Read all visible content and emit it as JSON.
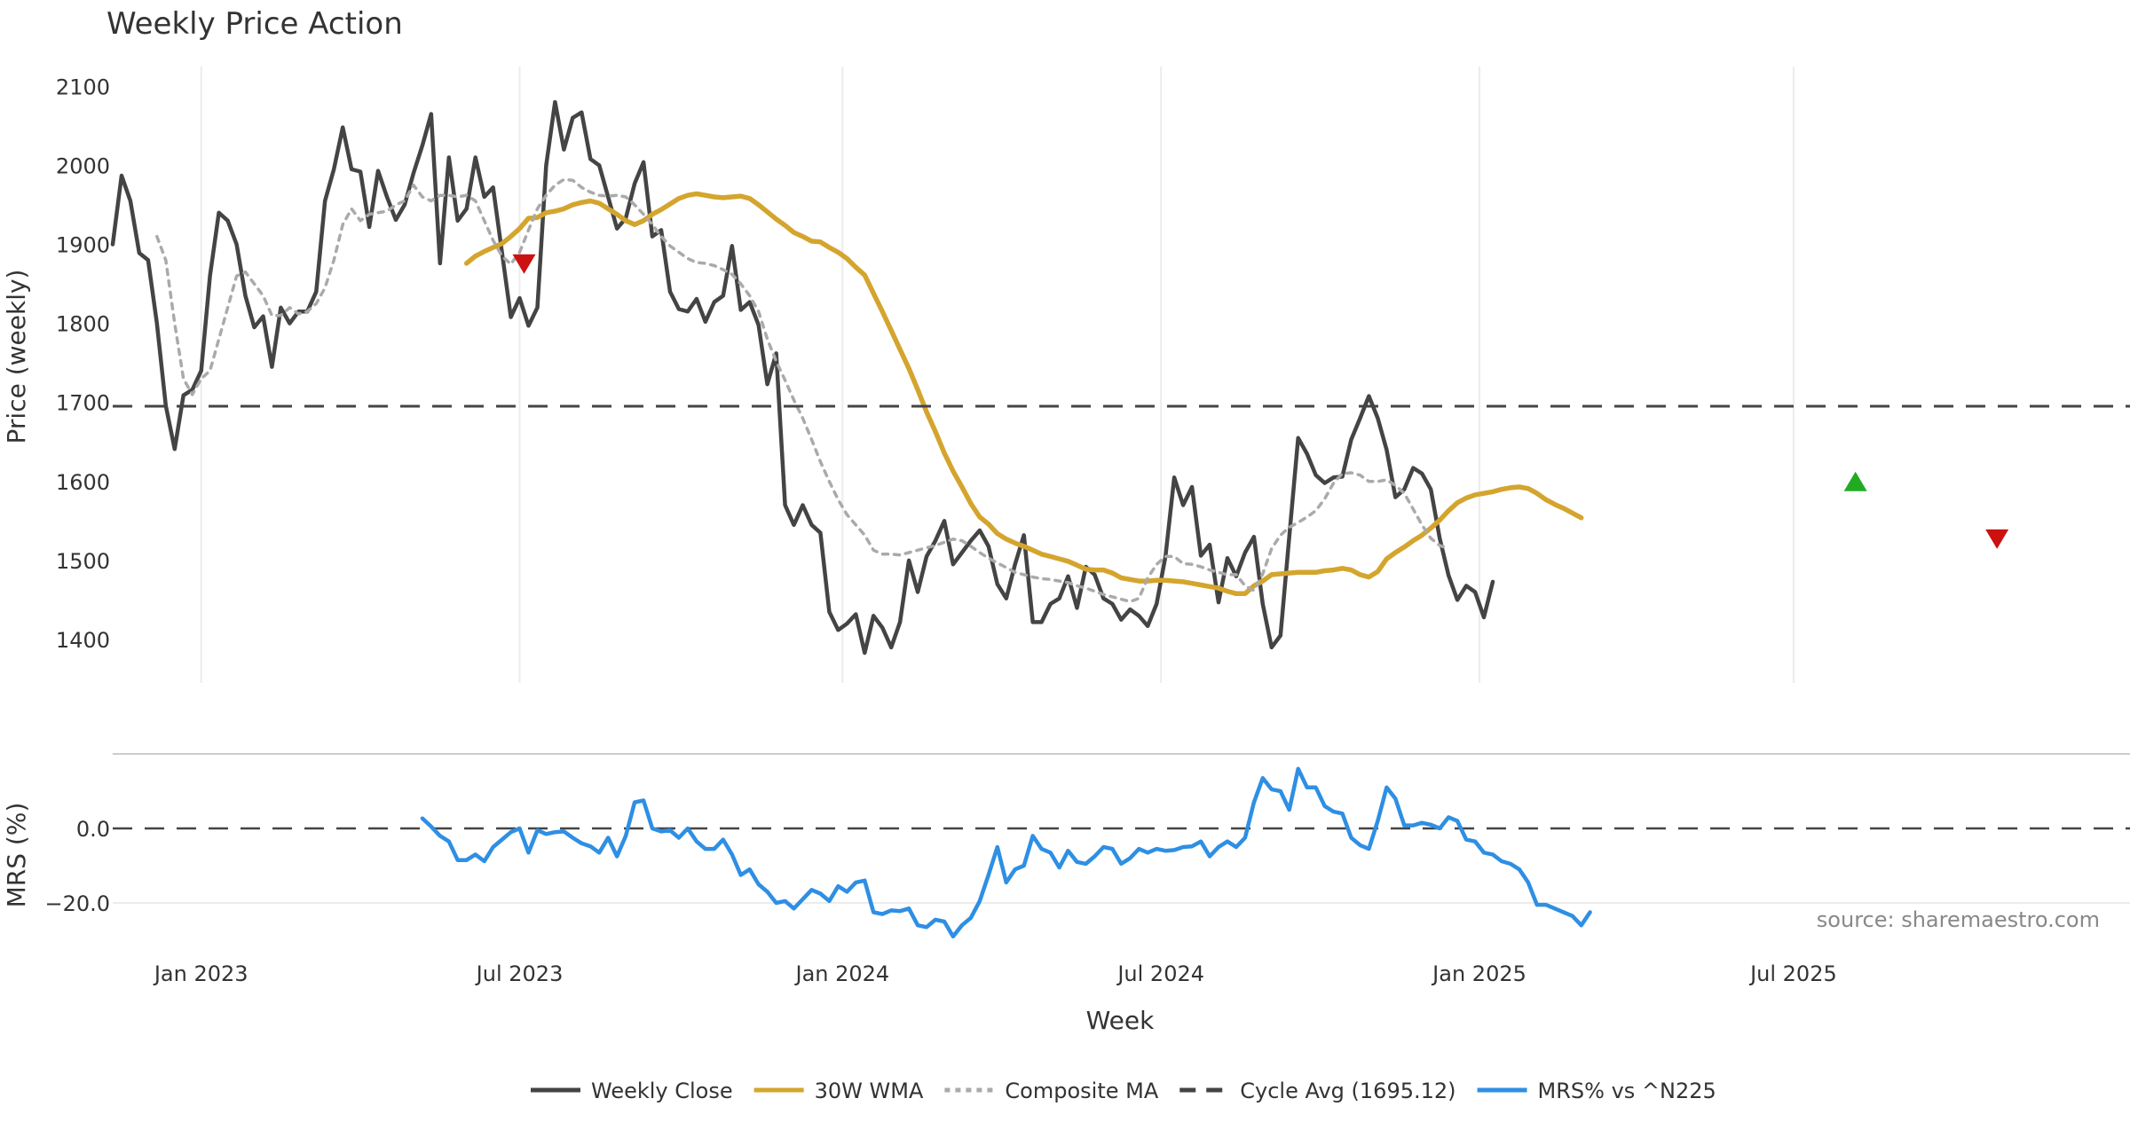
{
  "chart_data": {
    "type": "line",
    "title": "Weekly Price Action",
    "xlabel": "Week",
    "source_note": "source: sharemaestro.com",
    "x_ticks": [
      "Jan 2023",
      "Jul 2023",
      "Jan 2024",
      "Jul 2024",
      "Jan 2025",
      "Jul 2025"
    ],
    "x_tick_weeks": [
      10,
      46,
      82.5,
      118.5,
      154.5,
      190
    ],
    "weeks_total": 218,
    "price_panel": {
      "ylabel": "Price (weekly)",
      "ylim": [
        1345,
        2125
      ],
      "yticks": [
        1400,
        1500,
        1600,
        1700,
        1800,
        1900,
        2000,
        2100
      ],
      "cycle_avg": 1695.12
    },
    "mrs_panel": {
      "ylabel": "MRS (%)",
      "ylim": [
        -30,
        20
      ],
      "yticks": [
        0.0,
        -20.0
      ],
      "ytick_labels": [
        "0.0",
        "−20.0"
      ]
    },
    "series": [
      {
        "name": "Weekly Close",
        "panel": "price",
        "color": "#444444",
        "style": "solid",
        "start_week": 0,
        "values": [
          1900,
          1987,
          1955,
          1889,
          1880,
          1800,
          1696,
          1641,
          1709,
          1716,
          1740,
          1860,
          1940,
          1930,
          1900,
          1835,
          1795,
          1809,
          1745,
          1820,
          1800,
          1815,
          1815,
          1840,
          1955,
          1995,
          2048,
          1995,
          1992,
          1922,
          1993,
          1960,
          1931,
          1950,
          1990,
          2025,
          2065,
          1876,
          2010,
          1930,
          1945,
          2010,
          1960,
          1972,
          1890,
          1808,
          1832,
          1797,
          1820,
          2000,
          2080,
          2020,
          2060,
          2067,
          2008,
          2000,
          1960,
          1920,
          1933,
          1977,
          2004,
          1910,
          1918,
          1840,
          1818,
          1815,
          1831,
          1802,
          1827,
          1835,
          1898,
          1817,
          1827,
          1798,
          1723,
          1762,
          1570,
          1545,
          1570,
          1545,
          1535,
          1435,
          1412,
          1420,
          1432,
          1383,
          1430,
          1415,
          1390,
          1422,
          1500,
          1460,
          1505,
          1525,
          1550,
          1495,
          1510,
          1525,
          1538,
          1518,
          1470,
          1452,
          1495,
          1532,
          1422,
          1422,
          1445,
          1452,
          1480,
          1440,
          1492,
          1482,
          1452,
          1445,
          1425,
          1438,
          1430,
          1417,
          1445,
          1505,
          1605,
          1570,
          1593,
          1506,
          1520,
          1447,
          1503,
          1480,
          1510,
          1530,
          1445,
          1390,
          1405,
          1530,
          1655,
          1635,
          1608,
          1598,
          1605,
          1606,
          1653,
          1680,
          1708,
          1680,
          1640,
          1580,
          1590,
          1617,
          1610,
          1590,
          1528,
          1481,
          1450,
          1468,
          1460,
          1428,
          1473
        ]
      },
      {
        "name": "30W WMA",
        "panel": "price",
        "color": "#D4A52E",
        "style": "solid",
        "start_week": 40,
        "values": [
          1876,
          1885,
          1891,
          1896,
          1901,
          1910,
          1920,
          1933,
          1934,
          1940,
          1942,
          1945,
          1950,
          1953,
          1955,
          1952,
          1945,
          1938,
          1930,
          1925,
          1930,
          1938,
          1944,
          1951,
          1958,
          1962,
          1964,
          1962,
          1960,
          1959,
          1960,
          1961,
          1958,
          1950,
          1941,
          1932,
          1924,
          1915,
          1910,
          1904,
          1903,
          1896,
          1890,
          1882,
          1871,
          1861,
          1838,
          1815,
          1791,
          1767,
          1743,
          1716,
          1688,
          1663,
          1636,
          1613,
          1593,
          1572,
          1555,
          1546,
          1534,
          1527,
          1522,
          1518,
          1513,
          1508,
          1505,
          1502,
          1499,
          1494,
          1489,
          1488,
          1488,
          1484,
          1478,
          1476,
          1474,
          1474,
          1475,
          1475,
          1474,
          1473,
          1471,
          1469,
          1467,
          1465,
          1461,
          1458,
          1458,
          1468,
          1474,
          1482,
          1483,
          1484,
          1485,
          1485,
          1485,
          1487,
          1488,
          1490,
          1488,
          1482,
          1479,
          1486,
          1502,
          1510,
          1517,
          1525,
          1532,
          1541,
          1551,
          1563,
          1573,
          1579,
          1583,
          1585,
          1587,
          1590,
          1592,
          1593,
          1591,
          1585,
          1577,
          1571,
          1566,
          1560,
          1554
        ]
      },
      {
        "name": "Composite MA",
        "panel": "price",
        "color": "#AAAAAA",
        "style": "dotted",
        "start_week": 5,
        "values": [
          1910,
          1880,
          1800,
          1730,
          1710,
          1730,
          1740,
          1780,
          1820,
          1860,
          1865,
          1850,
          1835,
          1810,
          1810,
          1820,
          1812,
          1815,
          1825,
          1845,
          1880,
          1925,
          1945,
          1930,
          1938,
          1940,
          1942,
          1950,
          1955,
          1975,
          1960,
          1955,
          1962,
          1962,
          1960,
          1962,
          1955,
          1930,
          1905,
          1885,
          1875,
          1890,
          1918,
          1945,
          1962,
          1975,
          1982,
          1981,
          1972,
          1966,
          1962,
          1961,
          1962,
          1960,
          1950,
          1938,
          1925,
          1910,
          1898,
          1890,
          1882,
          1877,
          1876,
          1873,
          1868,
          1862,
          1850,
          1835,
          1815,
          1780,
          1752,
          1728,
          1703,
          1680,
          1653,
          1625,
          1600,
          1577,
          1558,
          1545,
          1532,
          1513,
          1508,
          1508,
          1507,
          1510,
          1513,
          1516,
          1519,
          1523,
          1527,
          1525,
          1518,
          1510,
          1503,
          1497,
          1491,
          1485,
          1482,
          1479,
          1477,
          1476,
          1474,
          1472,
          1468,
          1465,
          1461,
          1457,
          1454,
          1451,
          1448,
          1452,
          1478,
          1495,
          1505,
          1505,
          1496,
          1495,
          1492,
          1488,
          1485,
          1482,
          1482,
          1468,
          1462,
          1483,
          1515,
          1532,
          1542,
          1548,
          1555,
          1563,
          1578,
          1598,
          1610,
          1611,
          1608,
          1600,
          1600,
          1602,
          1595,
          1585,
          1565,
          1545,
          1528,
          1519,
          1515
        ]
      },
      {
        "name": "Cycle Avg (1695.12)",
        "panel": "price",
        "color": "#444444",
        "style": "dashed",
        "value": 1695.12
      },
      {
        "name": "MRS% vs ^N225",
        "panel": "mrs",
        "color": "#2E8FE3",
        "style": "solid",
        "start_week": 35,
        "values": [
          2.7,
          0.5,
          -2.0,
          -3.5,
          -8.5,
          -8.5,
          -7.0,
          -8.8,
          -5.0,
          -3.0,
          -1.0,
          0.0,
          -6.5,
          -0.5,
          -1.5,
          -1.0,
          -0.8,
          -2.5,
          -4.0,
          -4.8,
          -6.5,
          -2.5,
          -7.5,
          -2.0,
          7.0,
          7.5,
          0.0,
          -0.8,
          -0.5,
          -2.5,
          0.0,
          -3.5,
          -5.5,
          -5.5,
          -3.0,
          -7.0,
          -12.5,
          -11.0,
          -15.0,
          -17.0,
          -20.0,
          -19.5,
          -21.5,
          -19.0,
          -16.5,
          -17.5,
          -19.5,
          -15.5,
          -17.0,
          -14.5,
          -14.0,
          -22.5,
          -23.0,
          -22.0,
          -22.2,
          -21.5,
          -26.0,
          -26.5,
          -24.5,
          -25.0,
          -29.0,
          -26.0,
          -24.0,
          -19.5,
          -12.5,
          -5.0,
          -14.5,
          -11.0,
          -10.0,
          -2.0,
          -5.5,
          -6.5,
          -10.5,
          -6.0,
          -9.0,
          -9.5,
          -7.5,
          -5.0,
          -5.5,
          -9.5,
          -8.0,
          -5.5,
          -6.5,
          -5.5,
          -6.0,
          -5.8,
          -5.0,
          -4.8,
          -3.5,
          -7.5,
          -5.0,
          -3.5,
          -5.0,
          -2.5,
          7.0,
          13.5,
          10.5,
          10.0,
          5.0,
          16.0,
          11.0,
          11.0,
          6.0,
          4.5,
          4.0,
          -2.5,
          -4.5,
          -5.5,
          2.0,
          11.0,
          8.0,
          0.8,
          0.8,
          1.5,
          1.0,
          0.0,
          3.0,
          2.0,
          -3.0,
          -3.5,
          -6.5,
          -7.0,
          -8.8,
          -9.5,
          -11.0,
          -14.5,
          -20.5,
          -20.5,
          -21.5,
          -22.5,
          -23.5,
          -26.0,
          -22.5
        ]
      }
    ],
    "markers": [
      {
        "type": "sell",
        "week": 46.5,
        "value": 1875,
        "color": "#CC1111"
      },
      {
        "type": "buy",
        "week": 197,
        "value": 1600,
        "color": "#22AA22"
      },
      {
        "type": "sell",
        "week": 213,
        "value": 1527,
        "color": "#CC1111"
      }
    ],
    "legend": [
      {
        "label": "Weekly Close",
        "color": "#444444",
        "style": "solid"
      },
      {
        "label": "30W WMA",
        "color": "#D4A52E",
        "style": "solid"
      },
      {
        "label": "Composite MA",
        "color": "#AAAAAA",
        "style": "dotted"
      },
      {
        "label": "Cycle Avg (1695.12)",
        "color": "#444444",
        "style": "dashed"
      },
      {
        "label": "MRS% vs ^N225",
        "color": "#2E8FE3",
        "style": "solid"
      }
    ],
    "legend_position": "bottom-center"
  }
}
